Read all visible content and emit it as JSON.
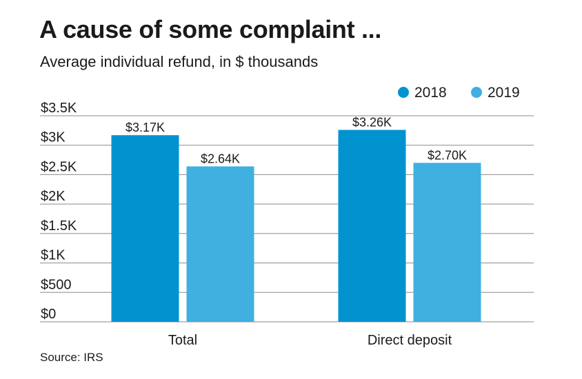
{
  "title": "A cause of some complaint ...",
  "subtitle": "Average individual refund, in $ thousands",
  "source": "Source: IRS",
  "colors": {
    "2018": "#0093d0",
    "2019": "#3fb0e0",
    "grid": "#8a8a8a",
    "text": "#1a1a1a"
  },
  "chart_data": {
    "type": "bar",
    "categories": [
      "Total",
      "Direct deposit"
    ],
    "series": [
      {
        "name": "2018",
        "values": [
          3.17,
          3.26
        ],
        "labels": [
          "$3.17K",
          "$3.26K"
        ],
        "color": "#0093d0"
      },
      {
        "name": "2019",
        "values": [
          2.64,
          2.7
        ],
        "labels": [
          "$2.64K",
          "$2.70K"
        ],
        "color": "#3fb0e0"
      }
    ],
    "yticks": [
      0,
      0.5,
      1,
      1.5,
      2,
      2.5,
      3,
      3.5
    ],
    "ytick_labels": [
      "$0",
      "$500",
      "$1K",
      "$1.5K",
      "$2K",
      "$2.5K",
      "$3K",
      "$3.5K"
    ],
    "ylim": [
      0,
      3.5
    ],
    "grid": true,
    "legend_position": "top-right"
  }
}
